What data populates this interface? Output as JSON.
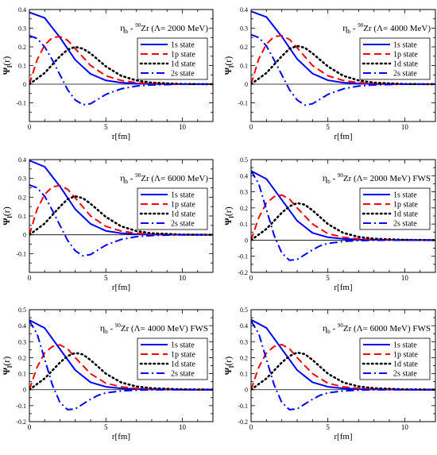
{
  "chart_data": [
    {
      "type": "line",
      "title_parts": [
        "η",
        "b",
        " - ",
        "90",
        "Zr (Λ= 2000 MeV)"
      ],
      "xlabel": "r[fm]",
      "ylabel_parts": [
        "Ψ",
        "l",
        "(r)"
      ],
      "xlim": [
        0,
        12
      ],
      "ylim": [
        -0.2,
        0.4
      ],
      "xticks": [
        0,
        5,
        10
      ],
      "xtick_labels": [
        "0",
        "5",
        "10"
      ],
      "yticks": [
        -0.1,
        0,
        0.1,
        0.2,
        0.3,
        0.4
      ],
      "ytick_labels": [
        "-0.1",
        "0",
        "0.1",
        "0.2",
        "0.3",
        "0.4"
      ],
      "legend_position": "right",
      "series": [
        {
          "name": "1s state",
          "color": "#0000ff",
          "dash": "solid",
          "x": [
            0,
            1,
            2,
            3,
            4,
            5,
            6,
            7,
            8,
            10,
            12
          ],
          "y": [
            0.385,
            0.355,
            0.25,
            0.13,
            0.055,
            0.02,
            0.008,
            0.003,
            0.001,
            0,
            0
          ]
        },
        {
          "name": "1p state",
          "color": "#ff0000",
          "dash": "dashed",
          "x": [
            0,
            0.5,
            1,
            1.5,
            2,
            2.5,
            3,
            4,
            5,
            6,
            7,
            8,
            10,
            12
          ],
          "y": [
            0,
            0.13,
            0.21,
            0.25,
            0.255,
            0.235,
            0.19,
            0.1,
            0.045,
            0.02,
            0.008,
            0.003,
            0,
            0
          ]
        },
        {
          "name": "1d state",
          "color": "#000000",
          "dash": "dotted",
          "x": [
            0,
            1,
            2,
            2.5,
            3,
            3.5,
            4,
            5,
            6,
            7,
            8,
            10,
            12
          ],
          "y": [
            0,
            0.06,
            0.15,
            0.185,
            0.2,
            0.19,
            0.165,
            0.095,
            0.045,
            0.02,
            0.008,
            0.001,
            0
          ]
        },
        {
          "name": "2s state",
          "color": "#0000ff",
          "dash": "dashdot",
          "x": [
            0,
            0.5,
            1,
            1.5,
            2,
            2.5,
            3,
            3.5,
            4,
            4.5,
            5,
            6,
            7,
            8,
            10,
            12
          ],
          "y": [
            0.26,
            0.245,
            0.2,
            0.13,
            0.05,
            -0.03,
            -0.085,
            -0.11,
            -0.105,
            -0.08,
            -0.055,
            -0.025,
            -0.01,
            -0.004,
            0,
            0
          ]
        }
      ]
    },
    {
      "type": "line",
      "title_parts": [
        "η",
        "b",
        " - ",
        "90",
        "Zr (Λ= 4000 MeV)"
      ],
      "xlabel": "r[fm]",
      "ylabel_parts": [
        "Ψ",
        "l",
        "(r)"
      ],
      "xlim": [
        0,
        12
      ],
      "ylim": [
        -0.2,
        0.4
      ],
      "xticks": [
        0,
        5,
        10
      ],
      "xtick_labels": [
        "0",
        "5",
        "10"
      ],
      "yticks": [
        -0.1,
        0,
        0.1,
        0.2,
        0.3,
        0.4
      ],
      "ytick_labels": [
        "-0.1",
        "0",
        "0.1",
        "0.2",
        "0.3",
        "0.4"
      ],
      "legend_position": "right",
      "series": [
        {
          "name": "1s state",
          "color": "#0000ff",
          "dash": "solid",
          "x": [
            0,
            1,
            2,
            3,
            4,
            5,
            6,
            7,
            8,
            10,
            12
          ],
          "y": [
            0.39,
            0.36,
            0.255,
            0.135,
            0.057,
            0.021,
            0.008,
            0.003,
            0.001,
            0,
            0
          ]
        },
        {
          "name": "1p state",
          "color": "#ff0000",
          "dash": "dashed",
          "x": [
            0,
            0.5,
            1,
            1.5,
            2,
            2.5,
            3,
            4,
            5,
            6,
            7,
            8,
            10,
            12
          ],
          "y": [
            0,
            0.135,
            0.215,
            0.255,
            0.26,
            0.24,
            0.195,
            0.1,
            0.045,
            0.02,
            0.008,
            0.003,
            0,
            0
          ]
        },
        {
          "name": "1d state",
          "color": "#000000",
          "dash": "dotted",
          "x": [
            0,
            1,
            2,
            2.5,
            3,
            3.5,
            4,
            5,
            6,
            7,
            8,
            10,
            12
          ],
          "y": [
            0,
            0.06,
            0.15,
            0.19,
            0.205,
            0.195,
            0.165,
            0.095,
            0.045,
            0.02,
            0.008,
            0.001,
            0
          ]
        },
        {
          "name": "2s state",
          "color": "#0000ff",
          "dash": "dashdot",
          "x": [
            0,
            0.5,
            1,
            1.5,
            2,
            2.5,
            3,
            3.5,
            4,
            4.5,
            5,
            6,
            7,
            8,
            10,
            12
          ],
          "y": [
            0.265,
            0.25,
            0.205,
            0.13,
            0.05,
            -0.03,
            -0.085,
            -0.112,
            -0.105,
            -0.08,
            -0.055,
            -0.025,
            -0.01,
            -0.004,
            0,
            0
          ]
        }
      ]
    },
    {
      "type": "line",
      "title_parts": [
        "η",
        "b",
        " - ",
        "90",
        "Zr (Λ= 6000 MeV)"
      ],
      "xlabel": "r[fm]",
      "ylabel_parts": [
        "Ψ",
        "l",
        "(r)"
      ],
      "xlim": [
        0,
        12
      ],
      "ylim": [
        -0.2,
        0.4
      ],
      "xticks": [
        0,
        5,
        10
      ],
      "xtick_labels": [
        "0",
        "5",
        "10"
      ],
      "yticks": [
        -0.1,
        0,
        0.1,
        0.2,
        0.3,
        0.4
      ],
      "ytick_labels": [
        "-0.1",
        "0",
        "0.1",
        "0.2",
        "0.3",
        "0.4"
      ],
      "legend_position": "right",
      "series": [
        {
          "name": "1s state",
          "color": "#0000ff",
          "dash": "solid",
          "x": [
            0,
            1,
            2,
            3,
            4,
            5,
            6,
            7,
            8,
            10,
            12
          ],
          "y": [
            0.395,
            0.362,
            0.257,
            0.136,
            0.058,
            0.021,
            0.008,
            0.003,
            0.001,
            0,
            0
          ]
        },
        {
          "name": "1p state",
          "color": "#ff0000",
          "dash": "dashed",
          "x": [
            0,
            0.5,
            1,
            1.5,
            2,
            2.5,
            3,
            4,
            5,
            6,
            7,
            8,
            10,
            12
          ],
          "y": [
            0,
            0.135,
            0.215,
            0.255,
            0.262,
            0.242,
            0.196,
            0.1,
            0.045,
            0.02,
            0.008,
            0.003,
            0,
            0
          ]
        },
        {
          "name": "1d state",
          "color": "#000000",
          "dash": "dotted",
          "x": [
            0,
            1,
            2,
            2.5,
            3,
            3.5,
            4,
            5,
            6,
            7,
            8,
            10,
            12
          ],
          "y": [
            0,
            0.06,
            0.15,
            0.19,
            0.205,
            0.195,
            0.165,
            0.095,
            0.045,
            0.02,
            0.008,
            0.001,
            0
          ]
        },
        {
          "name": "2s state",
          "color": "#0000ff",
          "dash": "dashdot",
          "x": [
            0,
            0.5,
            1,
            1.5,
            2,
            2.5,
            3,
            3.5,
            4,
            4.5,
            5,
            6,
            7,
            8,
            10,
            12
          ],
          "y": [
            0.265,
            0.25,
            0.205,
            0.13,
            0.05,
            -0.03,
            -0.085,
            -0.112,
            -0.105,
            -0.08,
            -0.055,
            -0.025,
            -0.01,
            -0.004,
            0,
            0
          ]
        }
      ]
    },
    {
      "type": "line",
      "title_parts": [
        "η",
        "b",
        " - ",
        "90",
        "Zr (Λ= 2000 MeV) FWS"
      ],
      "xlabel": "r[fm]",
      "ylabel_parts": [
        "Ψ",
        "l",
        "(r)"
      ],
      "xlim": [
        0,
        12
      ],
      "ylim": [
        -0.2,
        0.5
      ],
      "xticks": [
        0,
        5,
        10
      ],
      "xtick_labels": [
        "0",
        "5",
        "10"
      ],
      "yticks": [
        -0.2,
        -0.1,
        0,
        0.1,
        0.2,
        0.3,
        0.4,
        0.5
      ],
      "ytick_labels": [
        "-0.2",
        "-0.1",
        "0",
        "0.1",
        "0.2",
        "0.3",
        "0.4",
        "0.5"
      ],
      "legend_position": "right",
      "series": [
        {
          "name": "1s state",
          "color": "#0000ff",
          "dash": "solid",
          "x": [
            0,
            1,
            2,
            3,
            4,
            5,
            6,
            7,
            8,
            10,
            12
          ],
          "y": [
            0.43,
            0.38,
            0.25,
            0.12,
            0.045,
            0.018,
            0.008,
            0.004,
            0.002,
            0,
            0
          ]
        },
        {
          "name": "1p state",
          "color": "#ff0000",
          "dash": "dashed",
          "x": [
            0,
            0.5,
            1,
            1.5,
            2,
            2.5,
            3,
            4,
            5,
            6,
            7,
            8,
            10,
            12
          ],
          "y": [
            0,
            0.14,
            0.23,
            0.27,
            0.28,
            0.255,
            0.2,
            0.1,
            0.04,
            0.018,
            0.008,
            0.004,
            0.001,
            0
          ]
        },
        {
          "name": "1d state",
          "color": "#000000",
          "dash": "dotted",
          "x": [
            0,
            1,
            2,
            2.5,
            3,
            3.5,
            4,
            5,
            6,
            7,
            8,
            10,
            12
          ],
          "y": [
            0,
            0.07,
            0.17,
            0.21,
            0.23,
            0.22,
            0.185,
            0.1,
            0.045,
            0.02,
            0.009,
            0.002,
            0
          ]
        },
        {
          "name": "2s state",
          "color": "#0000ff",
          "dash": "dashdot",
          "x": [
            0,
            0.5,
            1,
            1.5,
            2,
            2.5,
            3,
            3.5,
            4,
            4.5,
            5,
            6,
            7,
            8,
            10,
            12
          ],
          "y": [
            0.43,
            0.35,
            0.19,
            0.03,
            -0.08,
            -0.125,
            -0.12,
            -0.09,
            -0.06,
            -0.035,
            -0.02,
            -0.008,
            -0.003,
            -0.001,
            0,
            0
          ]
        }
      ]
    },
    {
      "type": "line",
      "title_parts": [
        "η",
        "b",
        " - ",
        "90",
        "Zr (Λ= 4000 MeV) FWS"
      ],
      "xlabel": "r[fm]",
      "ylabel_parts": [
        "Ψ",
        "l",
        "(r)"
      ],
      "xlim": [
        0,
        12
      ],
      "ylim": [
        -0.2,
        0.5
      ],
      "xticks": [
        0,
        5,
        10
      ],
      "xtick_labels": [
        "0",
        "5",
        "10"
      ],
      "yticks": [
        -0.2,
        -0.1,
        0,
        0.1,
        0.2,
        0.3,
        0.4,
        0.5
      ],
      "ytick_labels": [
        "-0.2",
        "-0.1",
        "0",
        "0.1",
        "0.2",
        "0.3",
        "0.4",
        "0.5"
      ],
      "legend_position": "right",
      "series": [
        {
          "name": "1s state",
          "color": "#0000ff",
          "dash": "solid",
          "x": [
            0,
            1,
            2,
            3,
            4,
            5,
            6,
            7,
            8,
            10,
            12
          ],
          "y": [
            0.435,
            0.385,
            0.253,
            0.122,
            0.046,
            0.018,
            0.008,
            0.004,
            0.002,
            0,
            0
          ]
        },
        {
          "name": "1p state",
          "color": "#ff0000",
          "dash": "dashed",
          "x": [
            0,
            0.5,
            1,
            1.5,
            2,
            2.5,
            3,
            4,
            5,
            6,
            7,
            8,
            10,
            12
          ],
          "y": [
            0,
            0.14,
            0.23,
            0.27,
            0.28,
            0.255,
            0.2,
            0.1,
            0.04,
            0.018,
            0.008,
            0.004,
            0.001,
            0
          ]
        },
        {
          "name": "1d state",
          "color": "#000000",
          "dash": "dotted",
          "x": [
            0,
            1,
            2,
            2.5,
            3,
            3.5,
            4,
            5,
            6,
            7,
            8,
            10,
            12
          ],
          "y": [
            0,
            0.07,
            0.17,
            0.21,
            0.23,
            0.22,
            0.185,
            0.1,
            0.045,
            0.02,
            0.009,
            0.002,
            0
          ]
        },
        {
          "name": "2s state",
          "color": "#0000ff",
          "dash": "dashdot",
          "x": [
            0,
            0.5,
            1,
            1.5,
            2,
            2.5,
            3,
            3.5,
            4,
            4.5,
            5,
            6,
            7,
            8,
            10,
            12
          ],
          "y": [
            0.43,
            0.35,
            0.19,
            0.03,
            -0.08,
            -0.125,
            -0.12,
            -0.09,
            -0.06,
            -0.035,
            -0.02,
            -0.008,
            -0.003,
            -0.001,
            0,
            0
          ]
        }
      ]
    },
    {
      "type": "line",
      "title_parts": [
        "η",
        "b",
        " - ",
        "90",
        "Zr (Λ= 6000 MeV) FWS"
      ],
      "xlabel": "r[fm]",
      "ylabel_parts": [
        "Ψ",
        "l",
        "(r)"
      ],
      "xlim": [
        0,
        12
      ],
      "ylim": [
        -0.2,
        0.5
      ],
      "xticks": [
        0,
        5,
        10
      ],
      "xtick_labels": [
        "0",
        "5",
        "10"
      ],
      "yticks": [
        -0.2,
        -0.1,
        0,
        0.1,
        0.2,
        0.3,
        0.4,
        0.5
      ],
      "ytick_labels": [
        "-0.2",
        "-0.1",
        "0",
        "0.1",
        "0.2",
        "0.3",
        "0.4",
        "0.5"
      ],
      "legend_position": "right",
      "series": [
        {
          "name": "1s state",
          "color": "#0000ff",
          "dash": "solid",
          "x": [
            0,
            1,
            2,
            3,
            4,
            5,
            6,
            7,
            8,
            10,
            12
          ],
          "y": [
            0.437,
            0.386,
            0.254,
            0.122,
            0.046,
            0.018,
            0.008,
            0.004,
            0.002,
            0,
            0
          ]
        },
        {
          "name": "1p state",
          "color": "#ff0000",
          "dash": "dashed",
          "x": [
            0,
            0.5,
            1,
            1.5,
            2,
            2.5,
            3,
            4,
            5,
            6,
            7,
            8,
            10,
            12
          ],
          "y": [
            0,
            0.14,
            0.23,
            0.27,
            0.282,
            0.256,
            0.2,
            0.1,
            0.04,
            0.018,
            0.008,
            0.004,
            0.001,
            0
          ]
        },
        {
          "name": "1d state",
          "color": "#000000",
          "dash": "dotted",
          "x": [
            0,
            1,
            2,
            2.5,
            3,
            3.5,
            4,
            5,
            6,
            7,
            8,
            10,
            12
          ],
          "y": [
            0,
            0.07,
            0.17,
            0.21,
            0.232,
            0.222,
            0.186,
            0.1,
            0.045,
            0.02,
            0.009,
            0.002,
            0
          ]
        },
        {
          "name": "2s state",
          "color": "#0000ff",
          "dash": "dashdot",
          "x": [
            0,
            0.5,
            1,
            1.5,
            2,
            2.5,
            3,
            3.5,
            4,
            4.5,
            5,
            6,
            7,
            8,
            10,
            12
          ],
          "y": [
            0.43,
            0.35,
            0.19,
            0.03,
            -0.08,
            -0.125,
            -0.12,
            -0.09,
            -0.06,
            -0.035,
            -0.02,
            -0.008,
            -0.003,
            -0.001,
            0,
            0
          ]
        }
      ]
    }
  ]
}
